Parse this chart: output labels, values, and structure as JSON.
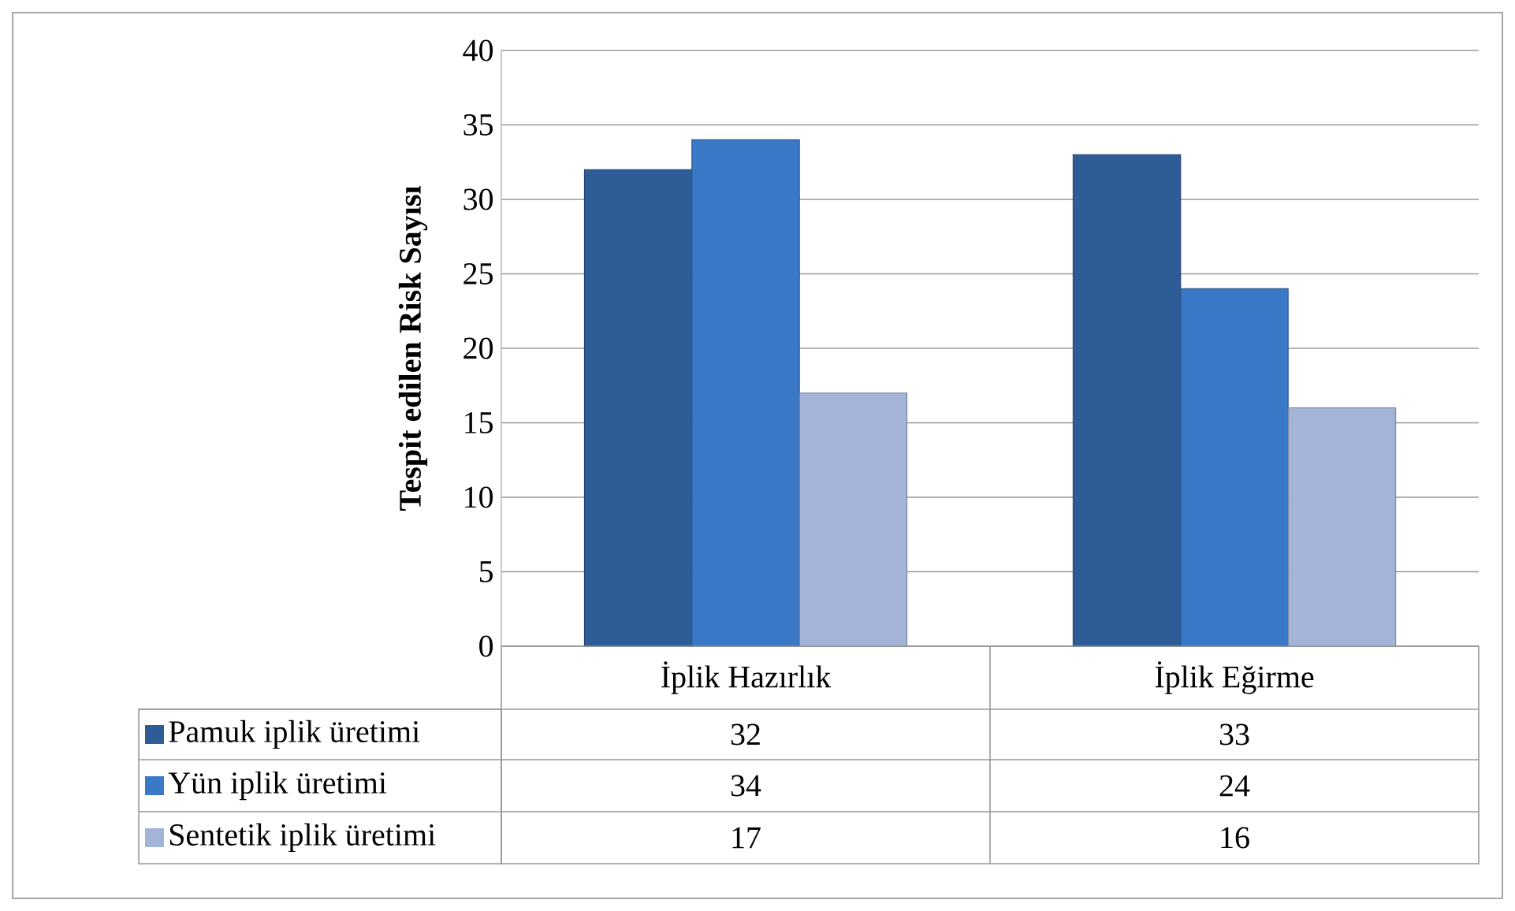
{
  "chart_data": {
    "type": "bar",
    "ylabel": "Tespit edilen Risk Sayısı",
    "categories": [
      "İplik Hazırlık",
      "İplik Eğirme"
    ],
    "series": [
      {
        "name": "Pamuk iplik üretimi",
        "color": "#2e5c96",
        "values": [
          32,
          33
        ]
      },
      {
        "name": "Yün iplik üretimi",
        "color": "#3a78c8",
        "values": [
          34,
          24
        ]
      },
      {
        "name": "Sentetik iplik üretimi",
        "color": "#a3b4d8",
        "values": [
          17,
          16
        ]
      }
    ],
    "ylim": [
      0,
      40
    ],
    "yticks": [
      0,
      5,
      10,
      15,
      20,
      25,
      30,
      35,
      40
    ],
    "grid": "y",
    "legend": "bottom",
    "data_labels": true
  }
}
